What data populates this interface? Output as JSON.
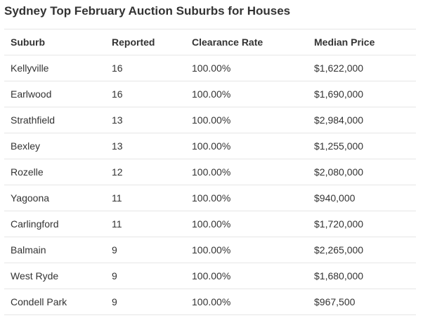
{
  "chart_data": {
    "type": "table",
    "title": "Sydney Top February Auction Suburbs for Houses",
    "columns": [
      "Suburb",
      "Reported",
      "Clearance Rate",
      "Median Price"
    ],
    "rows": [
      {
        "suburb": "Kellyville",
        "reported": "16",
        "clearance_rate": "100.00%",
        "median_price": "$1,622,000"
      },
      {
        "suburb": "Earlwood",
        "reported": "16",
        "clearance_rate": "100.00%",
        "median_price": "$1,690,000"
      },
      {
        "suburb": "Strathfield",
        "reported": "13",
        "clearance_rate": "100.00%",
        "median_price": "$2,984,000"
      },
      {
        "suburb": "Bexley",
        "reported": "13",
        "clearance_rate": "100.00%",
        "median_price": "$1,255,000"
      },
      {
        "suburb": "Rozelle",
        "reported": "12",
        "clearance_rate": "100.00%",
        "median_price": "$2,080,000"
      },
      {
        "suburb": "Yagoona",
        "reported": "11",
        "clearance_rate": "100.00%",
        "median_price": "$940,000"
      },
      {
        "suburb": "Carlingford",
        "reported": "11",
        "clearance_rate": "100.00%",
        "median_price": "$1,720,000"
      },
      {
        "suburb": "Balmain",
        "reported": "9",
        "clearance_rate": "100.00%",
        "median_price": "$2,265,000"
      },
      {
        "suburb": "West Ryde",
        "reported": "9",
        "clearance_rate": "100.00%",
        "median_price": "$1,680,000"
      },
      {
        "suburb": "Condell Park",
        "reported": "9",
        "clearance_rate": "100.00%",
        "median_price": "$967,500"
      }
    ]
  }
}
